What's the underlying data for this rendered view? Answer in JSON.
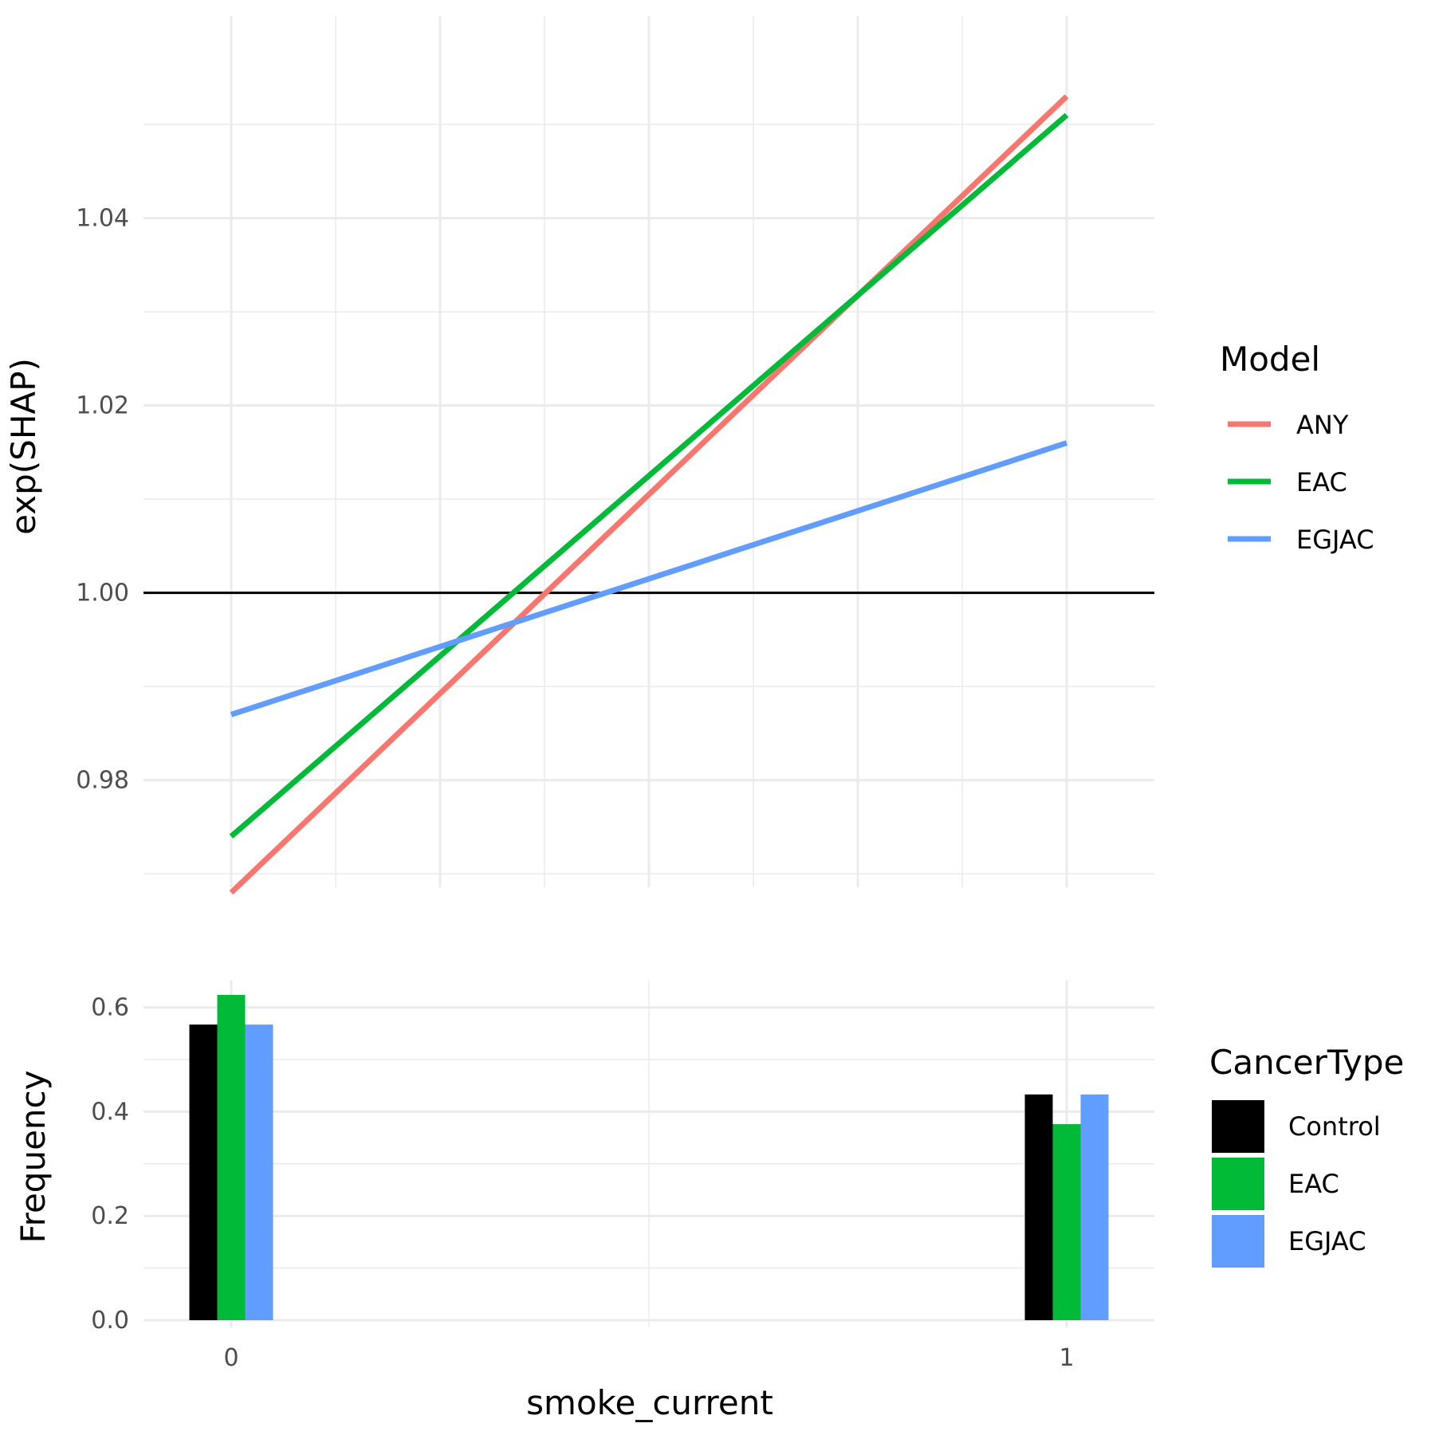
{
  "chart_data": [
    {
      "type": "line",
      "ylabel": "exp(SHAP)",
      "xlabel": "",
      "xlim": [
        -0.1,
        1.1
      ],
      "ylim": [
        0.964,
        1.056
      ],
      "y_ticks": [
        0.98,
        1.0,
        1.02,
        1.04
      ],
      "y_tick_labels": [
        "0.98",
        "1.00",
        "1.02",
        "1.04"
      ],
      "reference_line": 1.0,
      "grid": true,
      "legend": {
        "title": "Model",
        "position": "right"
      },
      "series": [
        {
          "name": "ANY",
          "color": "#F8766D",
          "x": [
            0,
            1
          ],
          "y": [
            0.968,
            1.053
          ]
        },
        {
          "name": "EAC",
          "color": "#00BA38",
          "x": [
            0,
            1
          ],
          "y": [
            0.974,
            1.051
          ]
        },
        {
          "name": "EGJAC",
          "color": "#619CFF",
          "x": [
            0,
            1
          ],
          "y": [
            0.987,
            1.016
          ]
        }
      ]
    },
    {
      "type": "bar",
      "xlabel": "smoke_current",
      "ylabel": "Frequency",
      "categories": [
        "0",
        "1"
      ],
      "ylim": [
        0,
        0.66
      ],
      "y_ticks": [
        0.0,
        0.2,
        0.4,
        0.6
      ],
      "y_tick_labels": [
        "0.0",
        "0.2",
        "0.4",
        "0.6"
      ],
      "grid": true,
      "legend": {
        "title": "CancerType",
        "position": "right"
      },
      "series": [
        {
          "name": "Control",
          "color": "#000000",
          "values": [
            0.567,
            0.433
          ]
        },
        {
          "name": "EAC",
          "color": "#00BA38",
          "values": [
            0.624,
            0.376
          ]
        },
        {
          "name": "EGJAC",
          "color": "#619CFF",
          "values": [
            0.567,
            0.433
          ]
        }
      ]
    }
  ]
}
